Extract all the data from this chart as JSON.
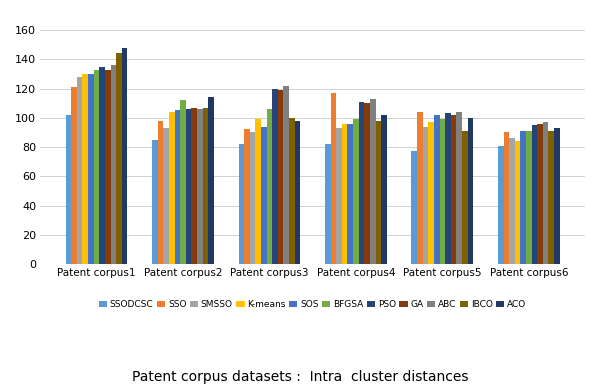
{
  "categories": [
    "Patent corpus1",
    "Patent corpus2",
    "Patent corpus3",
    "Patent corpus4",
    "Patent corpus5",
    "Patent corpus6"
  ],
  "series": {
    "SSODCSC": [
      102,
      85,
      82,
      82,
      77,
      81
    ],
    "SSO": [
      121,
      98,
      92,
      117,
      104,
      90
    ],
    "SMSSO": [
      128,
      93,
      90,
      93,
      94,
      86
    ],
    "K-means": [
      130,
      104,
      99,
      96,
      97,
      84
    ],
    "SOS": [
      130,
      105,
      94,
      96,
      102,
      91
    ],
    "BFGSA": [
      133,
      112,
      106,
      99,
      99,
      91
    ],
    "PSO": [
      135,
      106,
      120,
      111,
      103,
      95
    ],
    "GA": [
      133,
      107,
      119,
      110,
      102,
      96
    ],
    "ABC": [
      136,
      106,
      122,
      113,
      104,
      97
    ],
    "IBCO": [
      144,
      107,
      100,
      98,
      91,
      91
    ],
    "ACO": [
      148,
      114,
      98,
      102,
      100,
      93
    ]
  },
  "colors": {
    "SSODCSC": "#5B9BD5",
    "SSO": "#ED7D31",
    "SMSSO": "#A5A5A5",
    "K-means": "#FFC000",
    "SOS": "#4472C4",
    "BFGSA": "#70AD47",
    "PSO": "#264478",
    "GA": "#843C0C",
    "ABC": "#808080",
    "IBCO": "#7F6000",
    "ACO": "#1F3864"
  },
  "ylim": [
    0,
    165
  ],
  "yticks": [
    0,
    20,
    40,
    60,
    80,
    100,
    120,
    140,
    160
  ],
  "title": "Patent corpus datasets :  Intra  cluster distances",
  "title_fontsize": 10,
  "bar_width": 0.065,
  "legend_ncol": 11,
  "legend_fontsize": 6.5,
  "tick_fontsize": 7.5,
  "ytick_fontsize": 8
}
